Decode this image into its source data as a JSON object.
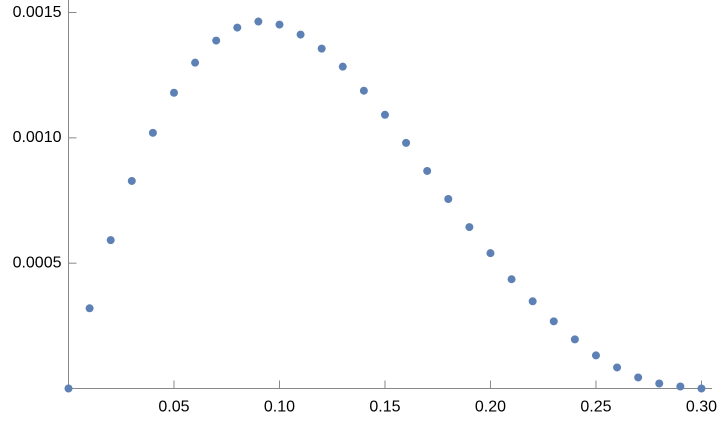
{
  "chart_data": {
    "type": "scatter",
    "x": [
      0,
      0.01,
      0.02,
      0.03,
      0.04,
      0.05,
      0.06,
      0.07,
      0.08,
      0.09,
      0.1,
      0.11,
      0.12,
      0.13,
      0.14,
      0.15,
      0.16,
      0.17,
      0.18,
      0.19,
      0.2,
      0.21,
      0.22,
      0.23,
      0.24,
      0.25,
      0.26,
      0.27,
      0.28,
      0.29,
      0.3
    ],
    "values": [
      0,
      0.00032,
      0.000592,
      0.000828,
      0.00102,
      0.00118,
      0.0013,
      0.001388,
      0.00144,
      0.001464,
      0.001452,
      0.001412,
      0.001356,
      0.001284,
      0.001188,
      0.001092,
      0.00098,
      0.000868,
      0.000756,
      0.000644,
      0.00054,
      0.000436,
      0.000348,
      0.000268,
      0.000196,
      0.000132,
      8.4e-05,
      4.4e-05,
      2e-05,
      8e-06,
      0
    ],
    "color": "#5e81b5",
    "xlim": [
      0,
      0.305
    ],
    "ylim": [
      0,
      0.00155
    ],
    "xticks": [
      0.05,
      {
        "value": 0.1,
        "label": "0.10"
      },
      0.15,
      {
        "value": 0.2,
        "label": "0.20"
      },
      0.25,
      {
        "value": 0.3,
        "label": "0.30"
      }
    ],
    "yticks": [
      0.0005,
      {
        "value": 0.001,
        "label": "0.0010"
      },
      {
        "value": 0.0015,
        "label": "0.0015"
      }
    ],
    "grid": false
  }
}
